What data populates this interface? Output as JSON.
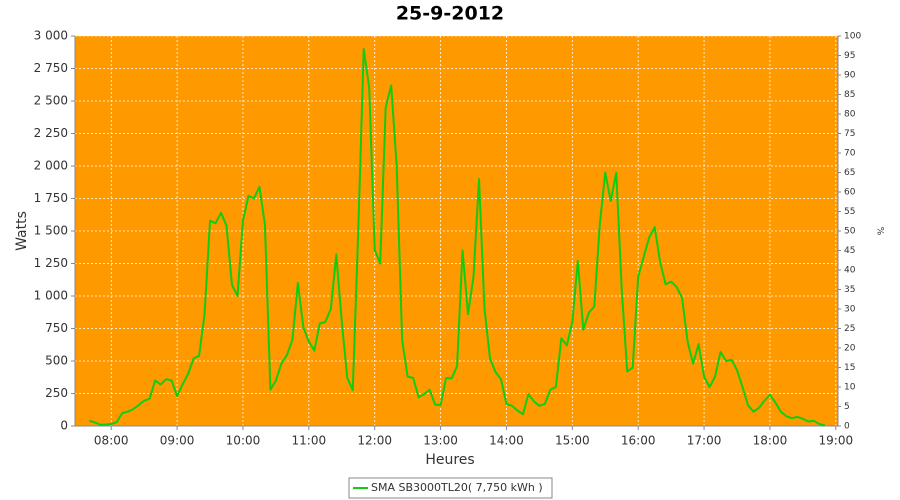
{
  "chart_data": {
    "type": "line",
    "title": "25-9-2012",
    "xlabel": "Heures",
    "ylabel": "Watts",
    "y2label": "%",
    "x": [
      "07:40",
      "07:45",
      "07:50",
      "07:55",
      "08:00",
      "08:05",
      "08:10",
      "08:15",
      "08:20",
      "08:25",
      "08:30",
      "08:35",
      "08:40",
      "08:45",
      "08:50",
      "08:55",
      "09:00",
      "09:05",
      "09:10",
      "09:15",
      "09:20",
      "09:25",
      "09:30",
      "09:35",
      "09:40",
      "09:45",
      "09:50",
      "09:55",
      "10:00",
      "10:05",
      "10:10",
      "10:15",
      "10:20",
      "10:25",
      "10:30",
      "10:35",
      "10:40",
      "10:45",
      "10:50",
      "10:55",
      "11:00",
      "11:05",
      "11:10",
      "11:15",
      "11:20",
      "11:25",
      "11:30",
      "11:35",
      "11:40",
      "11:45",
      "11:50",
      "11:55",
      "12:00",
      "12:05",
      "12:10",
      "12:15",
      "12:20",
      "12:25",
      "12:30",
      "12:35",
      "12:40",
      "12:45",
      "12:50",
      "12:55",
      "13:00",
      "13:05",
      "13:10",
      "13:15",
      "13:20",
      "13:25",
      "13:30",
      "13:35",
      "13:40",
      "13:45",
      "13:50",
      "13:55",
      "14:00",
      "14:05",
      "14:10",
      "14:15",
      "14:20",
      "14:25",
      "14:30",
      "14:35",
      "14:40",
      "14:45",
      "14:50",
      "14:55",
      "15:00",
      "15:05",
      "15:10",
      "15:15",
      "15:20",
      "15:25",
      "15:30",
      "15:35",
      "15:40",
      "15:45",
      "15:50",
      "15:55",
      "16:00",
      "16:05",
      "16:10",
      "16:15",
      "16:20",
      "16:25",
      "16:30",
      "16:35",
      "16:40",
      "16:45",
      "16:50",
      "16:55",
      "17:00",
      "17:05",
      "17:10",
      "17:15",
      "17:20",
      "17:25",
      "17:30",
      "17:35",
      "17:40",
      "17:45",
      "17:50",
      "17:55",
      "18:00",
      "18:05",
      "18:10",
      "18:15",
      "18:20",
      "18:25",
      "18:30",
      "18:35",
      "18:40",
      "18:45",
      "18:50"
    ],
    "series": [
      {
        "name": "SMA SB3000TL20( 7,750 kWh )",
        "color": "#11cc11",
        "values": [
          40,
          28,
          10,
          12,
          15,
          30,
          100,
          110,
          130,
          160,
          195,
          210,
          350,
          320,
          360,
          350,
          230,
          320,
          400,
          520,
          540,
          860,
          1580,
          1560,
          1640,
          1540,
          1085,
          1000,
          1580,
          1770,
          1750,
          1840,
          1550,
          280,
          350,
          480,
          545,
          660,
          1100,
          760,
          650,
          580,
          790,
          800,
          900,
          1320,
          800,
          370,
          275,
          1500,
          2900,
          2600,
          1355,
          1250,
          2450,
          2620,
          2000,
          660,
          380,
          370,
          220,
          245,
          280,
          165,
          160,
          370,
          365,
          460,
          1350,
          860,
          1150,
          1900,
          900,
          520,
          415,
          360,
          170,
          155,
          120,
          90,
          245,
          190,
          155,
          170,
          280,
          300,
          675,
          620,
          800,
          1270,
          740,
          870,
          920,
          1550,
          1950,
          1730,
          1950,
          1050,
          420,
          450,
          1150,
          1300,
          1450,
          1530,
          1260,
          1090,
          1110,
          1070,
          985,
          650,
          480,
          630,
          380,
          300,
          380,
          570,
          500,
          510,
          430,
          300,
          160,
          110,
          140,
          195,
          240,
          180,
          110,
          75,
          60,
          70,
          55,
          35,
          40,
          15,
          5
        ]
      }
    ],
    "xlim": [
      "07:27",
      "19:02"
    ],
    "xticks": [
      "08:00",
      "09:00",
      "10:00",
      "11:00",
      "12:00",
      "13:00",
      "14:00",
      "15:00",
      "16:00",
      "17:00",
      "18:00",
      "19:00"
    ],
    "ylim": [
      0,
      3000
    ],
    "yticks": [
      0,
      250,
      500,
      750,
      {
        "value": 1000,
        "label": "1 000"
      },
      {
        "value": 1250,
        "label": "1 250"
      },
      {
        "value": 1500,
        "label": "1 500"
      },
      {
        "value": 1750,
        "label": "1 750"
      },
      {
        "value": 2000,
        "label": "2 000"
      },
      {
        "value": 2250,
        "label": "2 250"
      },
      {
        "value": 2500,
        "label": "2 500"
      },
      {
        "value": 2750,
        "label": "2 750"
      },
      {
        "value": 3000,
        "label": "3 000"
      }
    ],
    "y2lim": [
      0,
      100
    ],
    "y2ticks": [
      0,
      5,
      10,
      15,
      20,
      25,
      30,
      35,
      40,
      45,
      50,
      55,
      60,
      65,
      70,
      75,
      80,
      85,
      90,
      95,
      100
    ],
    "grid": true,
    "plot_background": "#ff9900",
    "legend": "bottom"
  }
}
